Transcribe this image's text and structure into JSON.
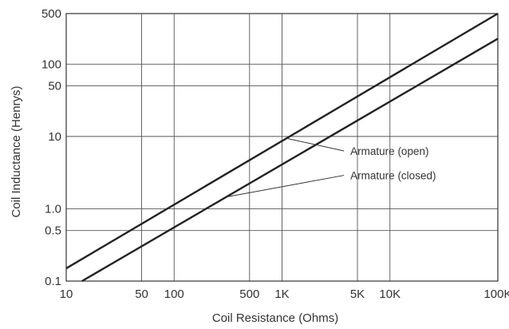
{
  "chart_data": {
    "type": "line",
    "title": "",
    "xlabel": "Coil Resistance (Ohms)",
    "ylabel": "Coil Inductance (Henrys)",
    "x_scale": "log",
    "y_scale": "log",
    "xlim": [
      10,
      100000
    ],
    "ylim": [
      0.1,
      500
    ],
    "grid": true,
    "x_ticks": [
      {
        "value": 10,
        "label": "10"
      },
      {
        "value": 50,
        "label": "50"
      },
      {
        "value": 100,
        "label": "100"
      },
      {
        "value": 500,
        "label": "500"
      },
      {
        "value": 1000,
        "label": "1K"
      },
      {
        "value": 5000,
        "label": "5K"
      },
      {
        "value": 10000,
        "label": "10K"
      },
      {
        "value": 100000,
        "label": "100K"
      }
    ],
    "y_ticks": [
      {
        "value": 0.1,
        "label": "0.1"
      },
      {
        "value": 0.5,
        "label": "0.5"
      },
      {
        "value": 1,
        "label": "1.0"
      },
      {
        "value": 10,
        "label": "10"
      },
      {
        "value": 50,
        "label": "50"
      },
      {
        "value": 100,
        "label": "100"
      },
      {
        "value": 500,
        "label": "500"
      }
    ],
    "series": [
      {
        "name": "Armature (open)",
        "color": "#222222",
        "x": [
          10,
          100000
        ],
        "y": [
          0.15,
          500
        ]
      },
      {
        "name": "Armature (closed)",
        "color": "#222222",
        "x": [
          14,
          100000
        ],
        "y": [
          0.1,
          225
        ]
      }
    ],
    "annotations": [
      {
        "text": "Armature (open)",
        "series": 0,
        "x": 1100,
        "tx": 4300,
        "ty": 6.3
      },
      {
        "text": "Armature (closed)",
        "series": 1,
        "x": 305,
        "tx": 4300,
        "ty": 2.9
      }
    ]
  }
}
